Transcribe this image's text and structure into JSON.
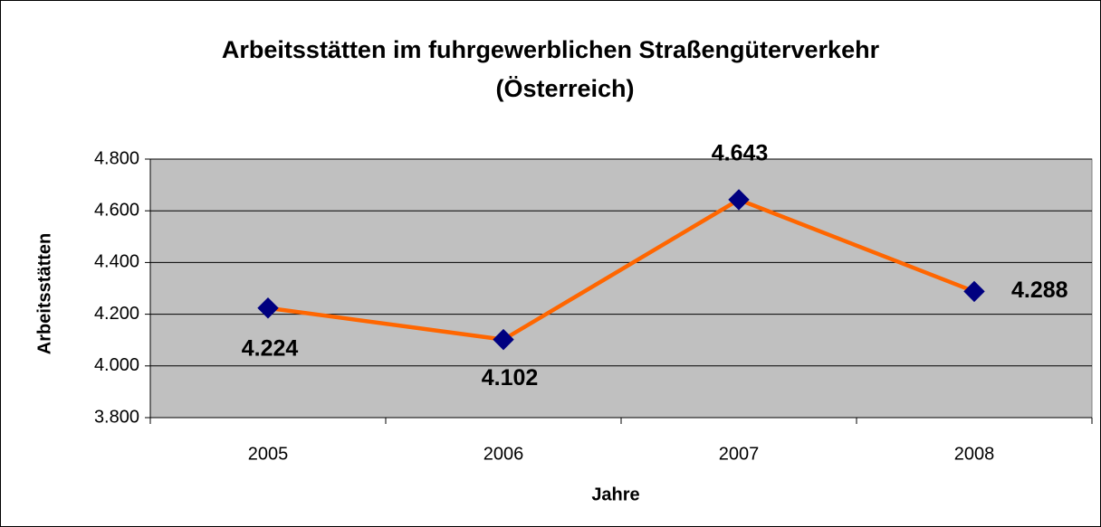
{
  "chart_data": {
    "type": "line",
    "title": [
      "Arbeitsstätten im fuhrgewerblichen Straßengüterverkehr",
      "(Österreich)"
    ],
    "x_label": "Jahre",
    "y_label": "Arbeitsstätten",
    "categories": [
      "2005",
      "2006",
      "2007",
      "2008"
    ],
    "series": [
      {
        "name": "Arbeitsstätten",
        "color": "#ff6600",
        "marker_color": "#000080",
        "values": [
          4224,
          4102,
          4643,
          4288
        ],
        "value_labels": [
          "4.224",
          "4.102",
          "4.643",
          "4.288"
        ]
      }
    ],
    "ylim": [
      3800,
      4800
    ],
    "yticks": [
      {
        "value": 3800,
        "label": "3.800"
      },
      {
        "value": 4000,
        "label": "4.000"
      },
      {
        "value": 4200,
        "label": "4.200"
      },
      {
        "value": 4400,
        "label": "4.400"
      },
      {
        "value": 4600,
        "label": "4.600"
      },
      {
        "value": 4800,
        "label": "4.800"
      }
    ],
    "grid": true,
    "plot_background": "#c0c0c0"
  }
}
